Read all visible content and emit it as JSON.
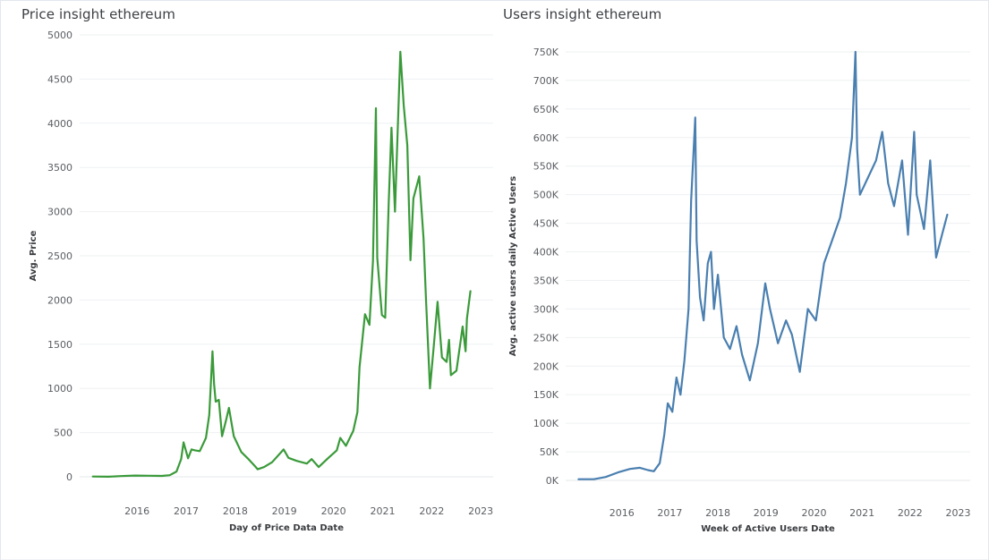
{
  "dashboard": {
    "price_title": "Price insight ethereum",
    "users_title": "Users insight ethereum"
  },
  "chart_data": [
    {
      "type": "line",
      "title": "Price insight ethereum",
      "xlabel": "Day of Price Data Date",
      "ylabel": "Avg. Price",
      "xlim": [
        "2015-05-01",
        "2023-10-01"
      ],
      "ylim": [
        0,
        5000
      ],
      "yticks": [
        0,
        500,
        1000,
        1500,
        2000,
        2500,
        3000,
        3500,
        4000,
        4500,
        5000
      ],
      "ytick_labels": [
        "0",
        "500",
        "1000",
        "1500",
        "2000",
        "2500",
        "3000",
        "3500",
        "4000",
        "4500",
        "5000"
      ],
      "xticks": [
        "2016",
        "2017",
        "2018",
        "2019",
        "2020",
        "2021",
        "2022",
        "2023"
      ],
      "grid": true,
      "color": "#3a9a3a",
      "series": [
        {
          "x": [
            "2015-08-07",
            "2015-12-01",
            "2016-03-01",
            "2016-06-15",
            "2016-10-01",
            "2017-01-01",
            "2017-03-01",
            "2017-04-20",
            "2017-05-25",
            "2017-06-12",
            "2017-07-15",
            "2017-08-10",
            "2017-09-05",
            "2017-10-10",
            "2017-11-25",
            "2017-12-20",
            "2018-01-13",
            "2018-01-25",
            "2018-02-06",
            "2018-03-01",
            "2018-03-25",
            "2018-04-25",
            "2018-05-15",
            "2018-06-20",
            "2018-08-15",
            "2018-10-01",
            "2018-11-25",
            "2018-12-15",
            "2019-02-01",
            "2019-04-01",
            "2019-06-26",
            "2019-08-01",
            "2019-10-01",
            "2019-12-15",
            "2020-01-20",
            "2020-03-13",
            "2020-05-20",
            "2020-07-25",
            "2020-08-20",
            "2020-10-01",
            "2020-11-25",
            "2020-12-25",
            "2021-01-10",
            "2021-02-20",
            "2021-03-25",
            "2021-04-20",
            "2021-05-12",
            "2021-05-22",
            "2021-06-26",
            "2021-07-20",
            "2021-08-15",
            "2021-09-05",
            "2021-10-01",
            "2021-11-10",
            "2021-12-05",
            "2022-01-01",
            "2022-01-24",
            "2022-02-15",
            "2022-03-30",
            "2022-05-01",
            "2022-05-20",
            "2022-06-18",
            "2022-07-15",
            "2022-08-14",
            "2022-09-15",
            "2022-10-20",
            "2022-11-07",
            "2022-11-21",
            "2023-01-01",
            "2023-02-16",
            "2023-03-10",
            "2023-03-20",
            "2023-04-15"
          ],
          "y": [
            3,
            1,
            8,
            14,
            12,
            10,
            18,
            60,
            200,
            390,
            210,
            310,
            300,
            290,
            440,
            700,
            1420,
            1050,
            850,
            870,
            460,
            650,
            780,
            460,
            280,
            210,
            120,
            85,
            110,
            165,
            310,
            215,
            180,
            150,
            200,
            110,
            210,
            300,
            440,
            350,
            520,
            730,
            1240,
            1840,
            1720,
            2440,
            4170,
            2480,
            1830,
            1800,
            3100,
            3950,
            3000,
            4810,
            4200,
            3750,
            2450,
            3150,
            3400,
            2700,
            2000,
            1000,
            1450,
            1980,
            1350,
            1300,
            1550,
            1150,
            1200,
            1700,
            1420,
            1790,
            2100
          ]
        }
      ]
    },
    {
      "type": "line",
      "title": "Users insight ethereum",
      "xlabel": "Week of Active Users Date",
      "ylabel": "Avg. active users daily Active Users",
      "xlim": [
        "2015-05-01",
        "2023-10-01"
      ],
      "ylim": [
        0,
        750000
      ],
      "yticks": [
        0,
        50000,
        100000,
        150000,
        200000,
        250000,
        300000,
        350000,
        400000,
        450000,
        500000,
        550000,
        600000,
        650000,
        700000,
        750000
      ],
      "ytick_labels": [
        "0K",
        "50K",
        "100K",
        "150K",
        "200K",
        "250K",
        "300K",
        "350K",
        "400K",
        "450K",
        "500K",
        "550K",
        "600K",
        "650K",
        "700K",
        "750K"
      ],
      "xticks": [
        "2016",
        "2017",
        "2018",
        "2019",
        "2020",
        "2021",
        "2022",
        "2023"
      ],
      "grid": true,
      "color": "#4a7fb0",
      "series": [
        {
          "x": [
            "2015-08-07",
            "2015-12-01",
            "2016-03-01",
            "2016-06-01",
            "2016-09-01",
            "2016-11-15",
            "2017-01-15",
            "2017-03-01",
            "2017-04-15",
            "2017-05-20",
            "2017-06-15",
            "2017-07-20",
            "2017-08-20",
            "2017-09-20",
            "2017-10-20",
            "2017-11-20",
            "2017-12-10",
            "2018-01-10",
            "2018-01-20",
            "2018-02-15",
            "2018-03-15",
            "2018-04-15",
            "2018-05-10",
            "2018-06-01",
            "2018-07-01",
            "2018-08-15",
            "2018-10-01",
            "2018-11-20",
            "2019-01-01",
            "2019-03-01",
            "2019-05-01",
            "2019-06-26",
            "2019-08-01",
            "2019-10-01",
            "2019-12-01",
            "2020-01-15",
            "2020-03-15",
            "2020-05-15",
            "2020-07-15",
            "2020-09-15",
            "2020-11-15",
            "2021-01-15",
            "2021-03-01",
            "2021-04-15",
            "2021-05-12",
            "2021-05-25",
            "2021-06-15",
            "2021-08-15",
            "2021-10-15",
            "2021-12-01",
            "2022-01-15",
            "2022-03-01",
            "2022-05-01",
            "2022-06-15",
            "2022-08-01",
            "2022-08-20",
            "2022-10-15",
            "2022-12-01",
            "2023-01-15",
            "2023-03-01",
            "2023-04-10"
          ],
          "y": [
            2000,
            2000,
            6000,
            14000,
            20000,
            22000,
            18000,
            16000,
            30000,
            80000,
            135000,
            120000,
            180000,
            150000,
            210000,
            300000,
            490000,
            635000,
            420000,
            320000,
            280000,
            380000,
            400000,
            300000,
            360000,
            250000,
            230000,
            270000,
            220000,
            175000,
            240000,
            345000,
            300000,
            240000,
            280000,
            255000,
            190000,
            300000,
            280000,
            380000,
            420000,
            460000,
            520000,
            600000,
            750000,
            580000,
            500000,
            530000,
            560000,
            610000,
            520000,
            480000,
            560000,
            430000,
            610000,
            500000,
            440000,
            560000,
            390000,
            430000,
            465000
          ]
        }
      ]
    }
  ]
}
